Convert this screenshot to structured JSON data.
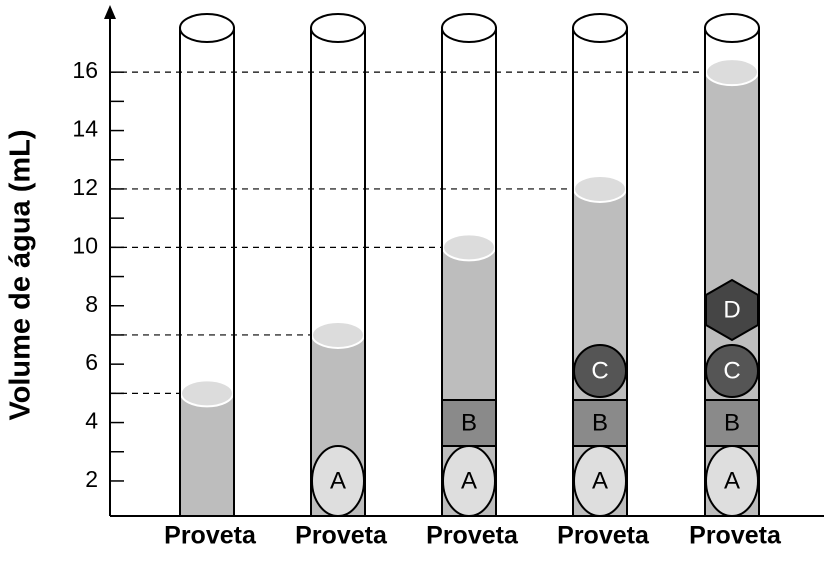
{
  "chart_data": {
    "type": "cylinders",
    "ylabel": "Volume de água (mL)",
    "categories": [
      "Proveta",
      "Proveta",
      "Proveta",
      "Proveta",
      "Proveta"
    ],
    "values": [
      5,
      7,
      10,
      12,
      16
    ],
    "objects": [
      [],
      [
        "A"
      ],
      [
        "A",
        "B"
      ],
      [
        "A",
        "B",
        "C"
      ],
      [
        "A",
        "B",
        "C",
        "D"
      ]
    ],
    "ylim": [
      0.8,
      18.3
    ],
    "yticks": [
      2,
      4,
      6,
      8,
      10,
      12,
      14,
      16
    ],
    "color": "#bdbdbd"
  }
}
